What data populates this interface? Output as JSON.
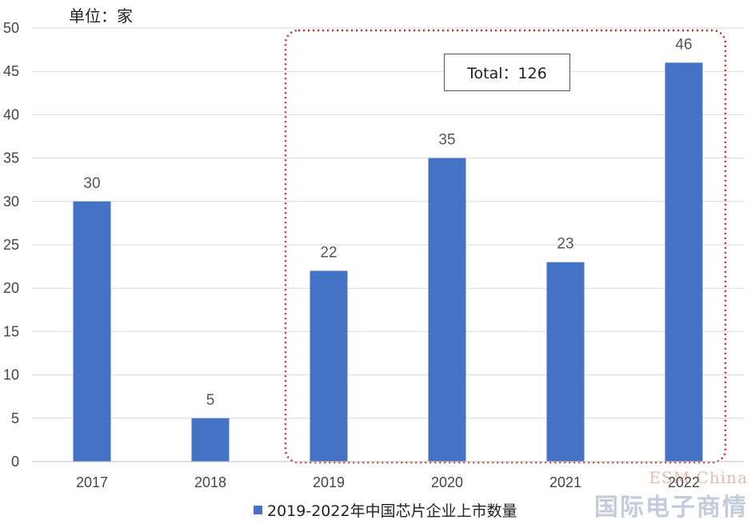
{
  "chart_data": {
    "type": "bar",
    "categories": [
      "2017",
      "2018",
      "2019",
      "2020",
      "2021",
      "2022"
    ],
    "series": [
      {
        "name": "2019-2022年中国芯片企业上市数量",
        "values": [
          30,
          5,
          22,
          35,
          23,
          46
        ]
      }
    ],
    "ylim": [
      0,
      50
    ],
    "yticks": [
      0,
      5,
      10,
      15,
      20,
      25,
      30,
      35,
      40,
      45,
      50
    ],
    "unit_label": "单位：家",
    "annotation": "Total：126",
    "highlight_categories": [
      "2019",
      "2020",
      "2021",
      "2022"
    ],
    "legend_position": "bottom",
    "grid": true,
    "colors": {
      "bar": "#4472C4",
      "highlight_border": "#E02020",
      "grid": "#D9D9D9"
    }
  },
  "watermark": {
    "line1": "ESM China",
    "line2": "国际电子商情"
  }
}
